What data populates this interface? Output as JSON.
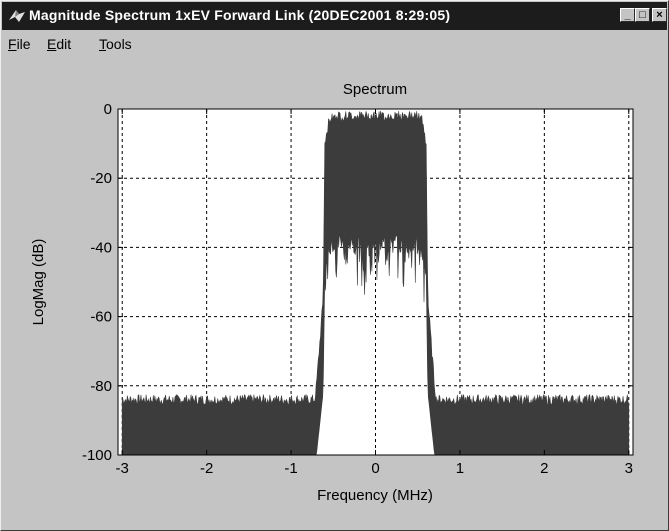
{
  "window": {
    "title": "Magnitude Spectrum 1xEV Forward Link (20DEC2001 8:29:05)",
    "controls": {
      "minimize": "_",
      "maximize": "□",
      "close": "×"
    }
  },
  "menu": {
    "items": [
      {
        "label": "File",
        "mnemonic": "F",
        "rest": "ile"
      },
      {
        "label": "Edit",
        "mnemonic": "E",
        "rest": "dit"
      },
      {
        "label": "Tools",
        "mnemonic": "T",
        "rest": "ools"
      }
    ]
  },
  "colors": {
    "trace": "#3c3c3c",
    "plot_bg": "#ffffff",
    "window_bg": "#c4c4c4",
    "titlebar": "#1c1c1c"
  },
  "chart_data": {
    "type": "area",
    "title": "Spectrum",
    "xlabel": "Frequency (MHz)",
    "ylabel": "LogMag (dB)",
    "xlim": [
      -3.05,
      3.05
    ],
    "ylim": [
      -100,
      0
    ],
    "xticks": [
      "-3",
      "-2",
      "-1",
      "0",
      "1",
      "2",
      "3"
    ],
    "yticks": [
      "0",
      "-20",
      "-40",
      "-60",
      "-80",
      "-100"
    ],
    "grid": true,
    "series": [
      {
        "x": [
          -3.0,
          -2.0,
          -1.0,
          -0.72,
          -0.7,
          -0.62,
          -0.6,
          -0.55,
          -0.5,
          0.0,
          0.5,
          0.55,
          0.6,
          0.62,
          0.7,
          0.72,
          1.0,
          2.0,
          3.0
        ],
        "upper": [
          -84,
          -84,
          -84,
          -84,
          -80,
          -55,
          -10,
          -2,
          -1,
          -1,
          -1,
          -2,
          -10,
          -55,
          -80,
          -84,
          -84,
          -84,
          -84
        ],
        "lower": [
          -100,
          -100,
          -100,
          -100,
          -100,
          -82,
          -48,
          -42,
          -40,
          -40,
          -40,
          -42,
          -48,
          -82,
          -100,
          -100,
          -100,
          -100,
          -100
        ]
      }
    ]
  }
}
